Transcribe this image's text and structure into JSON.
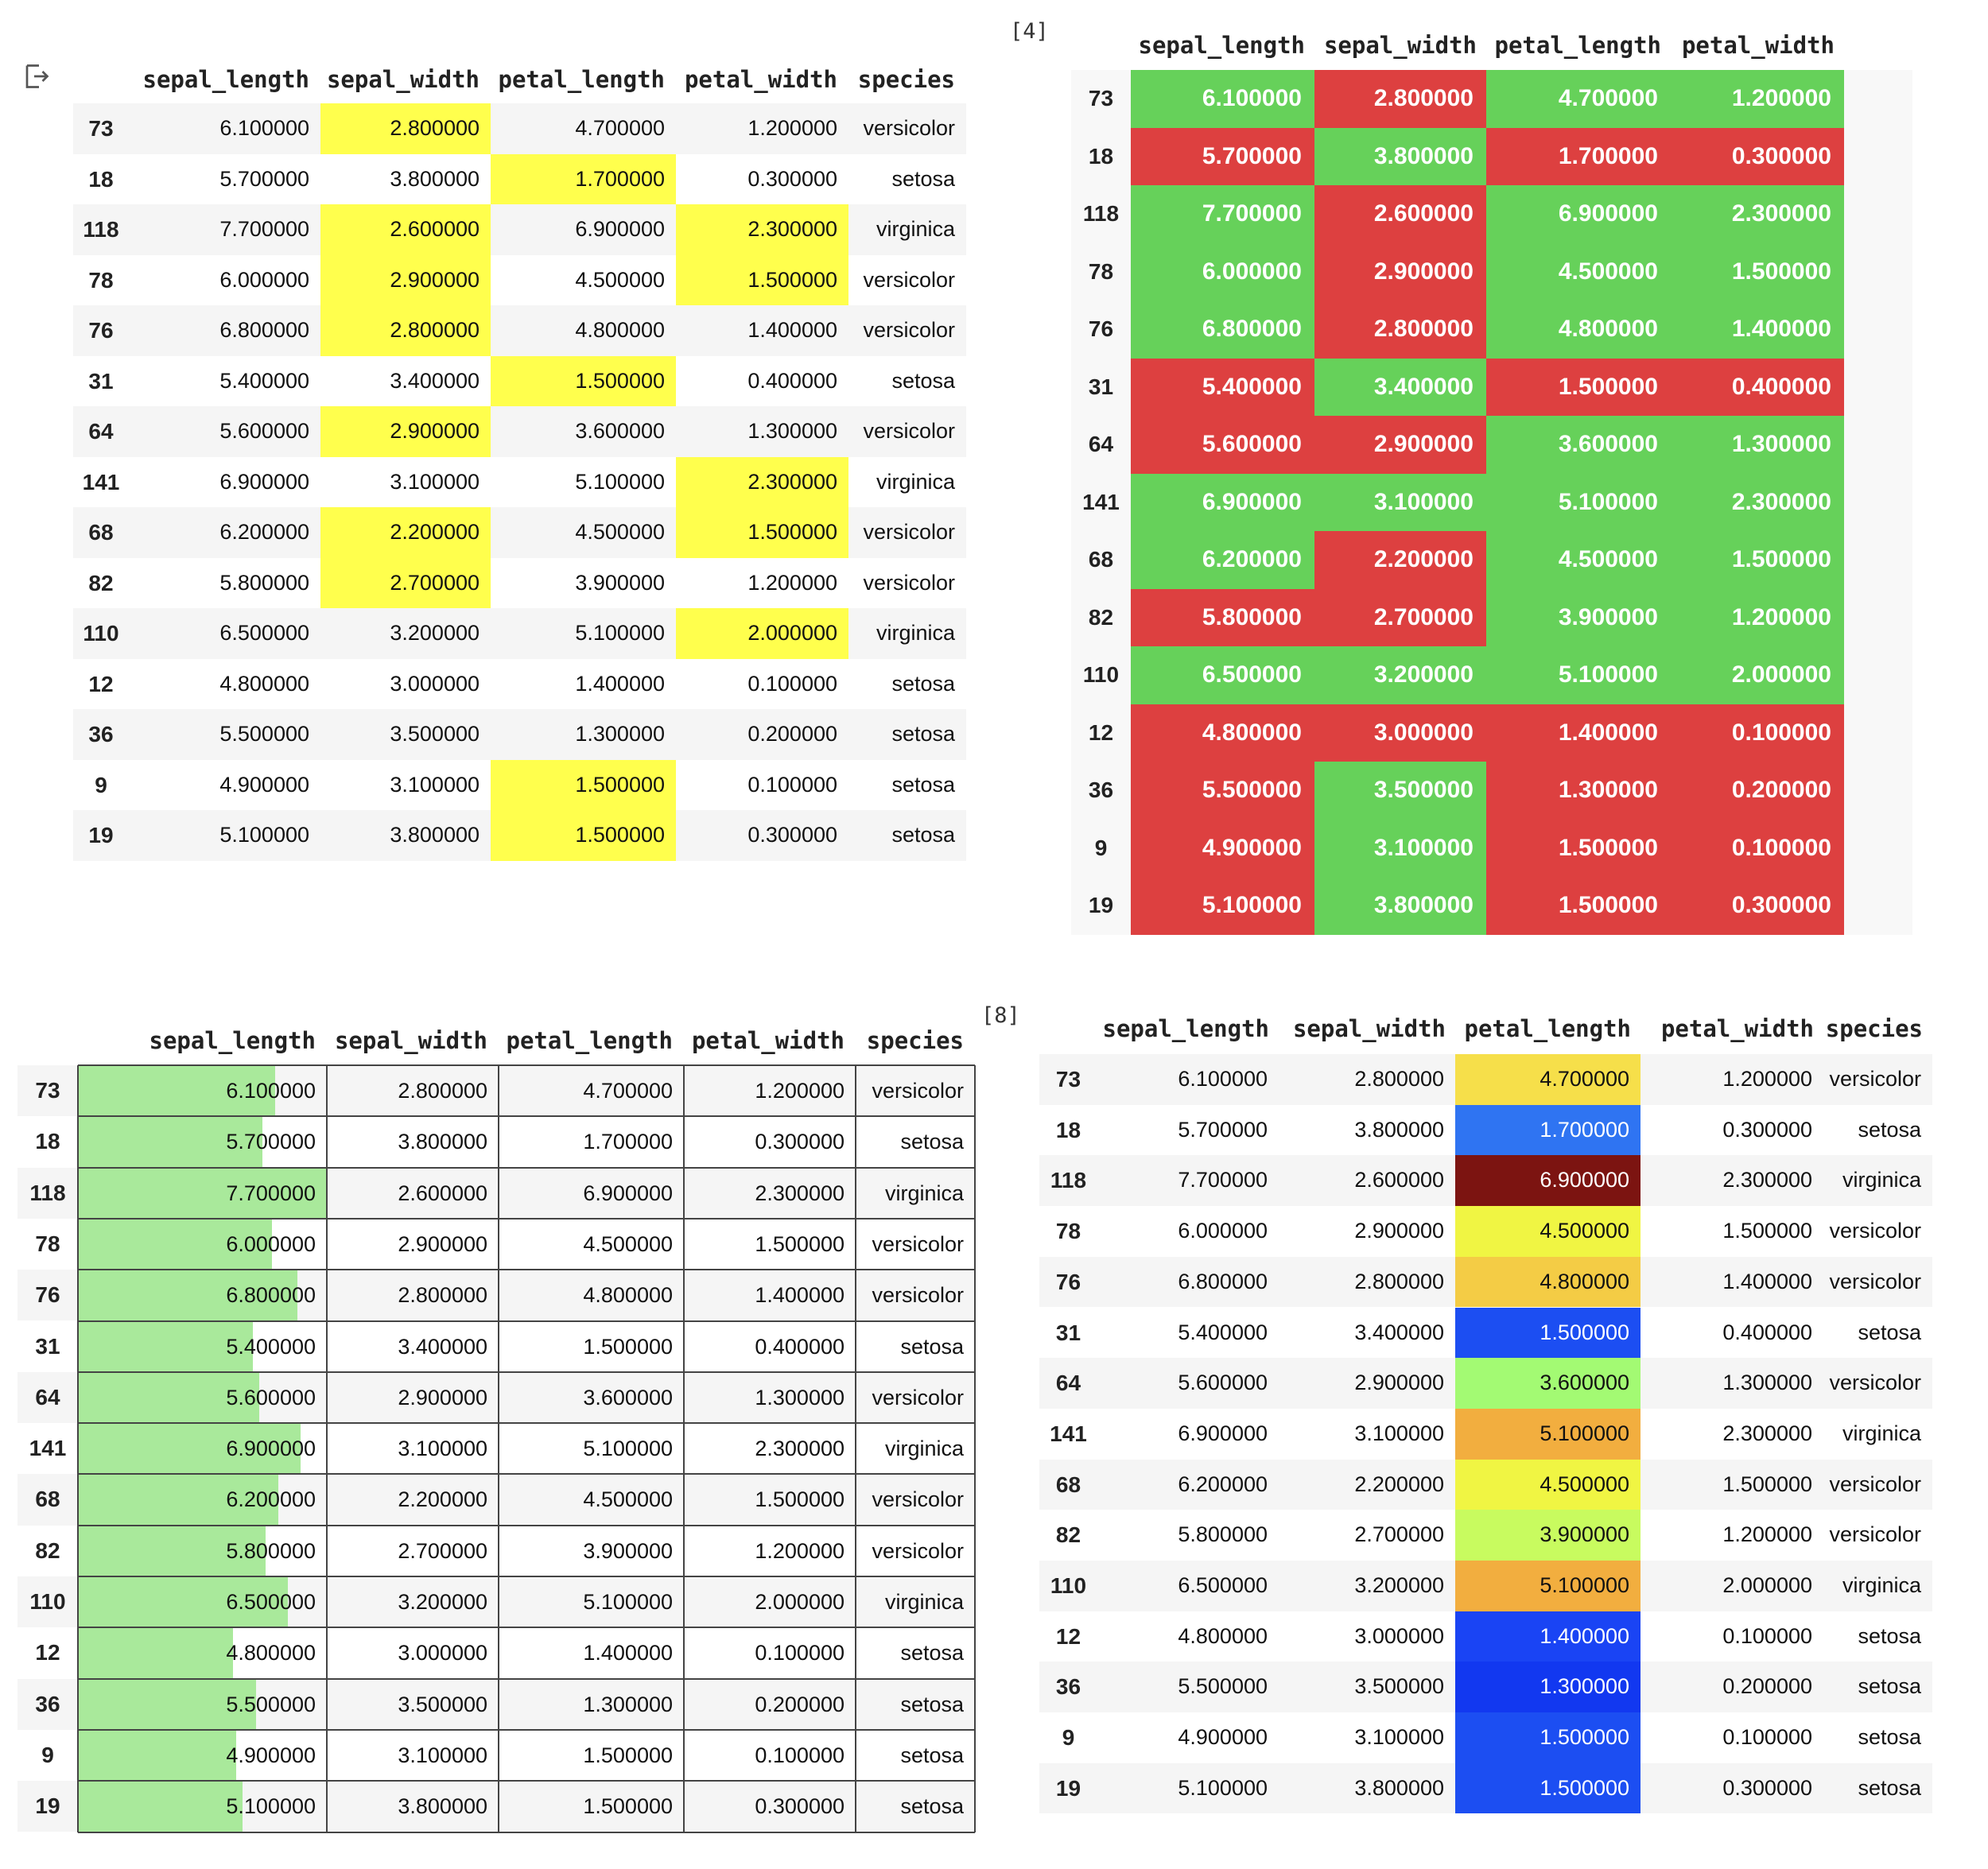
{
  "cell_labels": {
    "out_icon": "output-icon",
    "exec_4": "[4]",
    "exec_8": "[8]"
  },
  "colors": {
    "yellow": "#ffff4d",
    "red": "#dd4040",
    "green": "#66d15a",
    "bar_green": "#a9e99b",
    "row_stripe": "#f5f5f5"
  },
  "columns_species": [
    "sepal_length",
    "sepal_width",
    "petal_length",
    "petal_width",
    "species"
  ],
  "columns_numeric": [
    "sepal_length",
    "sepal_width",
    "petal_length",
    "petal_width"
  ],
  "rows": [
    {
      "idx": "73",
      "sl": "6.100000",
      "sw": "2.800000",
      "pl": "4.700000",
      "pw": "1.200000",
      "sp": "versicolor"
    },
    {
      "idx": "18",
      "sl": "5.700000",
      "sw": "3.800000",
      "pl": "1.700000",
      "pw": "0.300000",
      "sp": "setosa"
    },
    {
      "idx": "118",
      "sl": "7.700000",
      "sw": "2.600000",
      "pl": "6.900000",
      "pw": "2.300000",
      "sp": "virginica"
    },
    {
      "idx": "78",
      "sl": "6.000000",
      "sw": "2.900000",
      "pl": "4.500000",
      "pw": "1.500000",
      "sp": "versicolor"
    },
    {
      "idx": "76",
      "sl": "6.800000",
      "sw": "2.800000",
      "pl": "4.800000",
      "pw": "1.400000",
      "sp": "versicolor"
    },
    {
      "idx": "31",
      "sl": "5.400000",
      "sw": "3.400000",
      "pl": "1.500000",
      "pw": "0.400000",
      "sp": "setosa"
    },
    {
      "idx": "64",
      "sl": "5.600000",
      "sw": "2.900000",
      "pl": "3.600000",
      "pw": "1.300000",
      "sp": "versicolor"
    },
    {
      "idx": "141",
      "sl": "6.900000",
      "sw": "3.100000",
      "pl": "5.100000",
      "pw": "2.300000",
      "sp": "virginica"
    },
    {
      "idx": "68",
      "sl": "6.200000",
      "sw": "2.200000",
      "pl": "4.500000",
      "pw": "1.500000",
      "sp": "versicolor"
    },
    {
      "idx": "82",
      "sl": "5.800000",
      "sw": "2.700000",
      "pl": "3.900000",
      "pw": "1.200000",
      "sp": "versicolor"
    },
    {
      "idx": "110",
      "sl": "6.500000",
      "sw": "3.200000",
      "pl": "5.100000",
      "pw": "2.000000",
      "sp": "virginica"
    },
    {
      "idx": "12",
      "sl": "4.800000",
      "sw": "3.000000",
      "pl": "1.400000",
      "pw": "0.100000",
      "sp": "setosa"
    },
    {
      "idx": "36",
      "sl": "5.500000",
      "sw": "3.500000",
      "pl": "1.300000",
      "pw": "0.200000",
      "sp": "setosa"
    },
    {
      "idx": "9",
      "sl": "4.900000",
      "sw": "3.100000",
      "pl": "1.500000",
      "pw": "0.100000",
      "sp": "setosa"
    },
    {
      "idx": "19",
      "sl": "5.100000",
      "sw": "3.800000",
      "pl": "1.500000",
      "pw": "0.300000",
      "sp": "setosa"
    }
  ],
  "table1_highlights": {
    "sw": [
      true,
      false,
      true,
      true,
      true,
      false,
      true,
      false,
      true,
      true,
      false,
      false,
      false,
      false,
      false
    ],
    "pl": [
      false,
      true,
      false,
      false,
      false,
      true,
      false,
      false,
      false,
      false,
      false,
      false,
      false,
      true,
      true
    ],
    "pw": [
      false,
      false,
      true,
      true,
      false,
      false,
      false,
      true,
      true,
      false,
      true,
      false,
      false,
      false,
      false
    ]
  },
  "table2_is_green": [
    [
      true,
      false,
      true,
      true
    ],
    [
      false,
      true,
      false,
      false
    ],
    [
      true,
      false,
      true,
      true
    ],
    [
      true,
      false,
      true,
      true
    ],
    [
      true,
      false,
      true,
      true
    ],
    [
      false,
      true,
      false,
      false
    ],
    [
      false,
      false,
      true,
      true
    ],
    [
      true,
      true,
      true,
      true
    ],
    [
      true,
      false,
      true,
      true
    ],
    [
      false,
      false,
      true,
      true
    ],
    [
      true,
      true,
      true,
      true
    ],
    [
      false,
      false,
      false,
      false
    ],
    [
      false,
      true,
      false,
      false
    ],
    [
      false,
      true,
      false,
      false
    ],
    [
      false,
      true,
      false,
      false
    ]
  ],
  "table3_bar_max": 7.7,
  "table4_petal_length_colors": [
    "#f6df4a",
    "#2f74f2",
    "#7c1411",
    "#f0f543",
    "#f4cc45",
    "#1c4ef2",
    "#a3fa73",
    "#f2ae3f",
    "#f0f543",
    "#c8fb5f",
    "#f2ae3f",
    "#1a44f4",
    "#1238f0",
    "#1c4ef2",
    "#1c4ef2"
  ],
  "table4_petal_length_textcolor": [
    "#111",
    "#ffffff",
    "#ffffff",
    "#111",
    "#111",
    "#ffffff",
    "#111",
    "#111",
    "#111",
    "#111",
    "#111",
    "#ffffff",
    "#ffffff",
    "#ffffff",
    "#ffffff"
  ]
}
